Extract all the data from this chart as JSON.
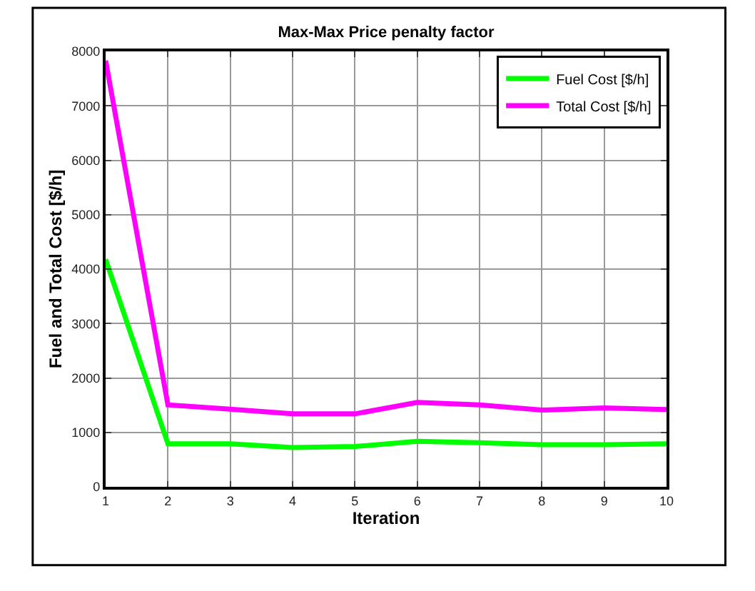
{
  "chart_data": {
    "type": "line",
    "title": "Max-Max Price penalty factor",
    "xlabel": "Iteration",
    "ylabel": "Fuel and Total Cost [$/h]",
    "x": [
      1,
      2,
      3,
      4,
      5,
      6,
      7,
      8,
      9,
      10
    ],
    "series": [
      {
        "name": "Fuel Cost [$/h]",
        "color": "#00ff00",
        "values": [
          4180,
          790,
          790,
          720,
          740,
          835,
          810,
          775,
          775,
          790
        ]
      },
      {
        "name": "Total Cost [$/h]",
        "color": "#ff00ff",
        "values": [
          7830,
          1505,
          1425,
          1340,
          1340,
          1550,
          1505,
          1410,
          1450,
          1420
        ]
      }
    ],
    "xlim": [
      1,
      10
    ],
    "xticks": [
      1,
      2,
      3,
      4,
      5,
      6,
      7,
      8,
      9,
      10
    ],
    "ylim": [
      0,
      8000
    ],
    "yticks": [
      0,
      1000,
      2000,
      3000,
      4000,
      5000,
      6000,
      7000,
      8000
    ],
    "grid": true,
    "legend": "top right",
    "marker": "none",
    "line_style": "solid"
  }
}
